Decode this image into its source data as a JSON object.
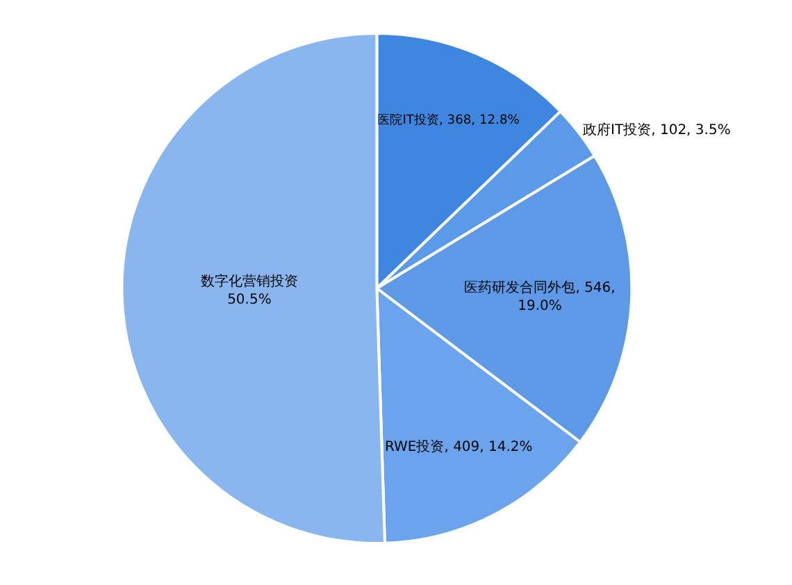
{
  "chart_data": {
    "type": "pie",
    "categories": [
      "医院IT投资",
      "政府IT投资",
      "医药研发合同外包",
      "RWE投资",
      "数字化营销投资"
    ],
    "values": [
      12.8,
      3.5,
      19.0,
      14.2,
      50.5
    ],
    "colors": [
      "#3f86e0",
      "#5b9ae8",
      "#5d99e6",
      "#6ba4ec",
      "#8ab6ef"
    ],
    "value_labels": [
      ", 368, 12.8%",
      ", 102, 3.5%",
      ", 546,\n19.0%",
      ", 409, 14.2%",
      "\n50.5%"
    ]
  }
}
